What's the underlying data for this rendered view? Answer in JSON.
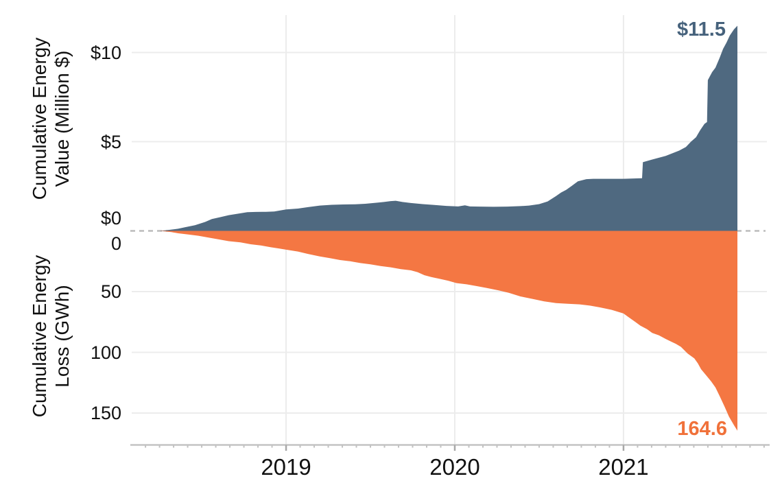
{
  "figure": {
    "background": "#ffffff",
    "colors": {
      "value_area": "#4f6980",
      "loss_area": "#f47743",
      "value_annotation": "#46627c",
      "loss_annotation": "#f0713a",
      "grid": "#ececec",
      "axis_line": "#c4c4c4",
      "zero_dashed_line": "#bcbcbc",
      "major_tick": "#a8a8a8",
      "minor_tick": "#c2c2c2",
      "tick_text": "#111111"
    }
  },
  "chart_data": [
    {
      "type": "area",
      "name": "cumulative-energy-value",
      "ylabel_line1": "Cumulative Energy",
      "ylabel_line2": "Value (Million $)",
      "unit": "Million $",
      "color": "#4f6980",
      "end_label": "$11.5",
      "end_value": 11.5,
      "grid": true,
      "legend_position": "none",
      "x_range": [
        2018.085,
        2021.85
      ],
      "y_range": [
        0,
        12.25
      ],
      "yticks": [
        {
          "value": 0,
          "label": "$0"
        },
        {
          "value": 5,
          "label": "$5"
        },
        {
          "value": 10,
          "label": "$10"
        }
      ],
      "xticks": [
        {
          "value": 2019,
          "label": "2019"
        },
        {
          "value": 2020,
          "label": "2020"
        },
        {
          "value": 2021,
          "label": "2021"
        }
      ],
      "x": [
        2018.25,
        2018.3,
        2018.36,
        2018.4,
        2018.46,
        2018.52,
        2018.56,
        2018.61,
        2018.66,
        2018.72,
        2018.77,
        2018.82,
        2018.88,
        2018.93,
        2019.0,
        2019.07,
        2019.13,
        2019.2,
        2019.27,
        2019.34,
        2019.41,
        2019.47,
        2019.54,
        2019.58,
        2019.62,
        2019.65,
        2019.69,
        2019.74,
        2019.81,
        2019.88,
        2019.95,
        2020.02,
        2020.06,
        2020.09,
        2020.15,
        2020.23,
        2020.31,
        2020.39,
        2020.44,
        2020.5,
        2020.55,
        2020.6,
        2020.63,
        2020.66,
        2020.69,
        2020.73,
        2020.78,
        2020.82,
        2020.9,
        2021.0,
        2021.11,
        2021.115,
        2021.17,
        2021.25,
        2021.33,
        2021.37,
        2021.4,
        2021.43,
        2021.455,
        2021.48,
        2021.495,
        2021.5,
        2021.525,
        2021.545,
        2021.57,
        2021.59,
        2021.61,
        2021.63,
        2021.655,
        2021.675
      ],
      "values": [
        0,
        0.05,
        0.12,
        0.2,
        0.32,
        0.5,
        0.66,
        0.77,
        0.88,
        0.97,
        1.05,
        1.06,
        1.07,
        1.09,
        1.2,
        1.25,
        1.33,
        1.42,
        1.46,
        1.48,
        1.49,
        1.52,
        1.58,
        1.62,
        1.67,
        1.69,
        1.62,
        1.56,
        1.5,
        1.45,
        1.4,
        1.37,
        1.43,
        1.37,
        1.36,
        1.35,
        1.36,
        1.39,
        1.42,
        1.5,
        1.65,
        1.95,
        2.15,
        2.3,
        2.5,
        2.78,
        2.9,
        2.92,
        2.92,
        2.92,
        2.95,
        3.85,
        4.0,
        4.2,
        4.5,
        4.7,
        5.0,
        5.25,
        5.65,
        6.0,
        6.1,
        8.45,
        8.9,
        9.15,
        9.7,
        10.2,
        10.55,
        10.95,
        11.3,
        11.5
      ]
    },
    {
      "type": "area",
      "name": "cumulative-energy-loss",
      "ylabel_line1": "Cumulative Energy",
      "ylabel_line2": "Loss (GWh)",
      "unit": "GWh",
      "color": "#f47743",
      "end_label": "164.6",
      "end_value": 164.6,
      "axis_inverted": true,
      "grid": true,
      "legend_position": "none",
      "x_range": [
        2018.085,
        2021.85
      ],
      "y_range": [
        0,
        176
      ],
      "yticks": [
        {
          "value": 0,
          "label": "0"
        },
        {
          "value": 50,
          "label": "50"
        },
        {
          "value": 100,
          "label": "100"
        },
        {
          "value": 150,
          "label": "150"
        }
      ],
      "xticks": [
        {
          "value": 2019,
          "label": "2019"
        },
        {
          "value": 2020,
          "label": "2020"
        },
        {
          "value": 2021,
          "label": "2021"
        }
      ],
      "x": [
        2018.25,
        2018.32,
        2018.36,
        2018.42,
        2018.48,
        2018.54,
        2018.6,
        2018.66,
        2018.73,
        2018.79,
        2018.85,
        2018.91,
        2018.96,
        2019.0,
        2019.07,
        2019.13,
        2019.2,
        2019.26,
        2019.32,
        2019.38,
        2019.44,
        2019.5,
        2019.56,
        2019.62,
        2019.68,
        2019.74,
        2019.78,
        2019.82,
        2019.86,
        2019.91,
        2019.96,
        2020.01,
        2020.07,
        2020.13,
        2020.19,
        2020.26,
        2020.32,
        2020.39,
        2020.46,
        2020.53,
        2020.6,
        2020.67,
        2020.74,
        2020.8,
        2020.86,
        2020.93,
        2021.0,
        2021.03,
        2021.07,
        2021.1,
        2021.14,
        2021.17,
        2021.21,
        2021.25,
        2021.28,
        2021.31,
        2021.34,
        2021.38,
        2021.42,
        2021.44,
        2021.46,
        2021.49,
        2021.52,
        2021.545,
        2021.57,
        2021.6,
        2021.625,
        2021.655,
        2021.675
      ],
      "values": [
        0,
        1,
        2,
        3,
        4,
        5.5,
        7,
        8.5,
        9.5,
        11,
        12,
        13.5,
        14.5,
        15.5,
        17,
        19,
        21,
        22.5,
        24,
        25,
        26.5,
        27.5,
        29,
        30,
        31.5,
        32.5,
        34,
        36.5,
        38,
        39.5,
        41,
        43,
        44,
        45.5,
        47,
        49,
        51,
        54,
        56,
        58,
        59.5,
        60,
        60.5,
        61.5,
        63,
        65,
        68,
        71,
        75,
        78,
        81,
        84,
        86,
        89,
        91,
        93,
        95.5,
        101,
        105,
        109,
        114,
        119,
        124,
        129,
        136,
        145,
        153,
        160,
        164.6
      ]
    }
  ]
}
